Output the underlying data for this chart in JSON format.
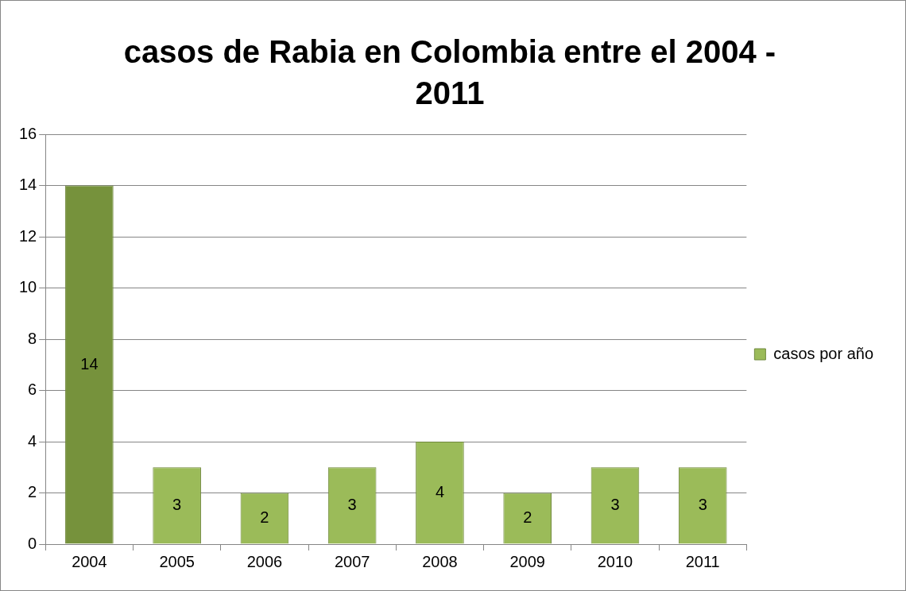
{
  "chart_data": {
    "type": "bar",
    "title": "casos de Rabia en Colombia entre el 2004 - 2011",
    "categories": [
      "2004",
      "2005",
      "2006",
      "2007",
      "2008",
      "2009",
      "2010",
      "2011"
    ],
    "series": [
      {
        "name": "casos por año",
        "color": "#9bbb59",
        "colors": [
          "#76923c",
          "#9bbb59",
          "#9bbb59",
          "#9bbb59",
          "#9bbb59",
          "#9bbb59",
          "#9bbb59",
          "#9bbb59"
        ],
        "values": [
          14,
          3,
          2,
          3,
          4,
          2,
          3,
          3
        ]
      }
    ],
    "ylim": [
      0,
      16
    ],
    "yticks": [
      0,
      2,
      4,
      6,
      8,
      10,
      12,
      14,
      16
    ],
    "grid": "y",
    "legend": "right",
    "data_labels": true
  }
}
